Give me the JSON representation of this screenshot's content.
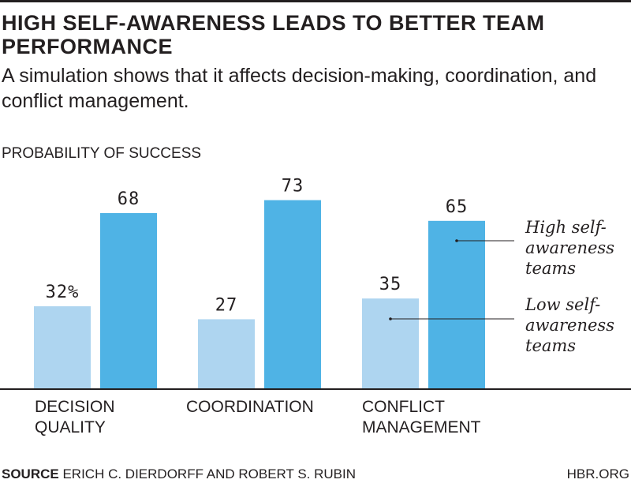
{
  "title": "HIGH SELF-AWARENESS LEADS TO BETTER TEAM PERFORMANCE",
  "subtitle": "A simulation shows that it affects decision-making, coordination, and conflict management.",
  "source_label": "SOURCE",
  "source_text": "ERICH C. DIERDORFF AND ROBERT S. RUBIN",
  "brand": "HBR.ORG",
  "chart_data": {
    "type": "bar",
    "ylabel": "PROBABILITY OF SUCCESS",
    "categories": [
      [
        "DECISION",
        "QUALITY"
      ],
      [
        "COORDINATION"
      ],
      [
        "CONFLICT",
        "MANAGEMENT"
      ]
    ],
    "series": [
      {
        "name": "Low self-awareness teams",
        "name_lines": [
          "Low self-",
          "awareness",
          "teams"
        ],
        "values": [
          32,
          27,
          35
        ],
        "labels": [
          "32%",
          "27",
          "35"
        ],
        "color": "#aed5f0"
      },
      {
        "name": "High self-awareness teams",
        "name_lines": [
          "High self-",
          "awareness",
          "teams"
        ],
        "values": [
          68,
          73,
          65
        ],
        "labels": [
          "68",
          "73",
          "65"
        ],
        "color": "#4fb3e5"
      }
    ],
    "ylim": [
      0,
      100
    ],
    "grid": false,
    "legend": "right, inline labels"
  }
}
